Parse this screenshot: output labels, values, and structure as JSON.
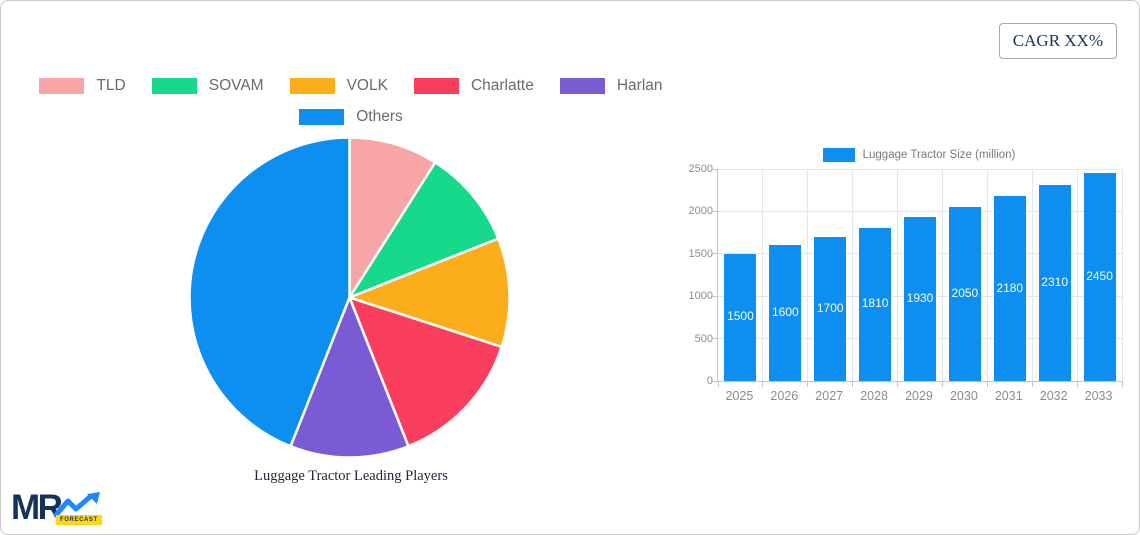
{
  "cagr_label": "CAGR XX%",
  "logo": {
    "text": "MR",
    "badge": "FORECAST"
  },
  "colors": {
    "accent_blue": "#0d8ff2",
    "grid": "#e6e6e6",
    "axis": "#c4c4c4",
    "legend_text": "#6b6b6b",
    "tick_text": "#8c8c8c",
    "bar_value_text": "#ffffff",
    "title_text": "#1c2636",
    "cagr_text": "#16365c",
    "logo_navy": "#14335b",
    "logo_yellow": "#ffd617",
    "logo_arrow_blue": "#1e88fd"
  },
  "chart_data": [
    {
      "type": "pie",
      "title": "Luggage Tractor Leading Players",
      "labels": [
        "TLD",
        "SOVAM",
        "VOLK",
        "Charlatte",
        "Harlan",
        "Others"
      ],
      "values": [
        9,
        10,
        11,
        14,
        12,
        44
      ],
      "unit": "percent-share",
      "colors": [
        "#f8a5a5",
        "#16d98b",
        "#fbad1c",
        "#fa3e5e",
        "#7a5bd3",
        "#0d8ff2"
      ],
      "start_angle": "top",
      "direction": "clockwise",
      "legend_position": "top",
      "legend_rows": [
        [
          "TLD",
          "SOVAM",
          "VOLK",
          "Charlatte",
          "Harlan"
        ],
        [
          "Others"
        ]
      ]
    },
    {
      "type": "bar",
      "legend": "Luggage Tractor Size (million)",
      "categories": [
        "2025",
        "2026",
        "2027",
        "2028",
        "2029",
        "2030",
        "2031",
        "2032",
        "2033"
      ],
      "values": [
        1500,
        1600,
        1700,
        1810,
        1930,
        2050,
        2180,
        2310,
        2450
      ],
      "bar_color": "#0d8ff2",
      "ylim": [
        0,
        2500
      ],
      "yticks": [
        0,
        500,
        1000,
        1500,
        2000,
        2500
      ],
      "grid": true,
      "value_labels": "inside-center-white",
      "legend_position": "top"
    }
  ]
}
